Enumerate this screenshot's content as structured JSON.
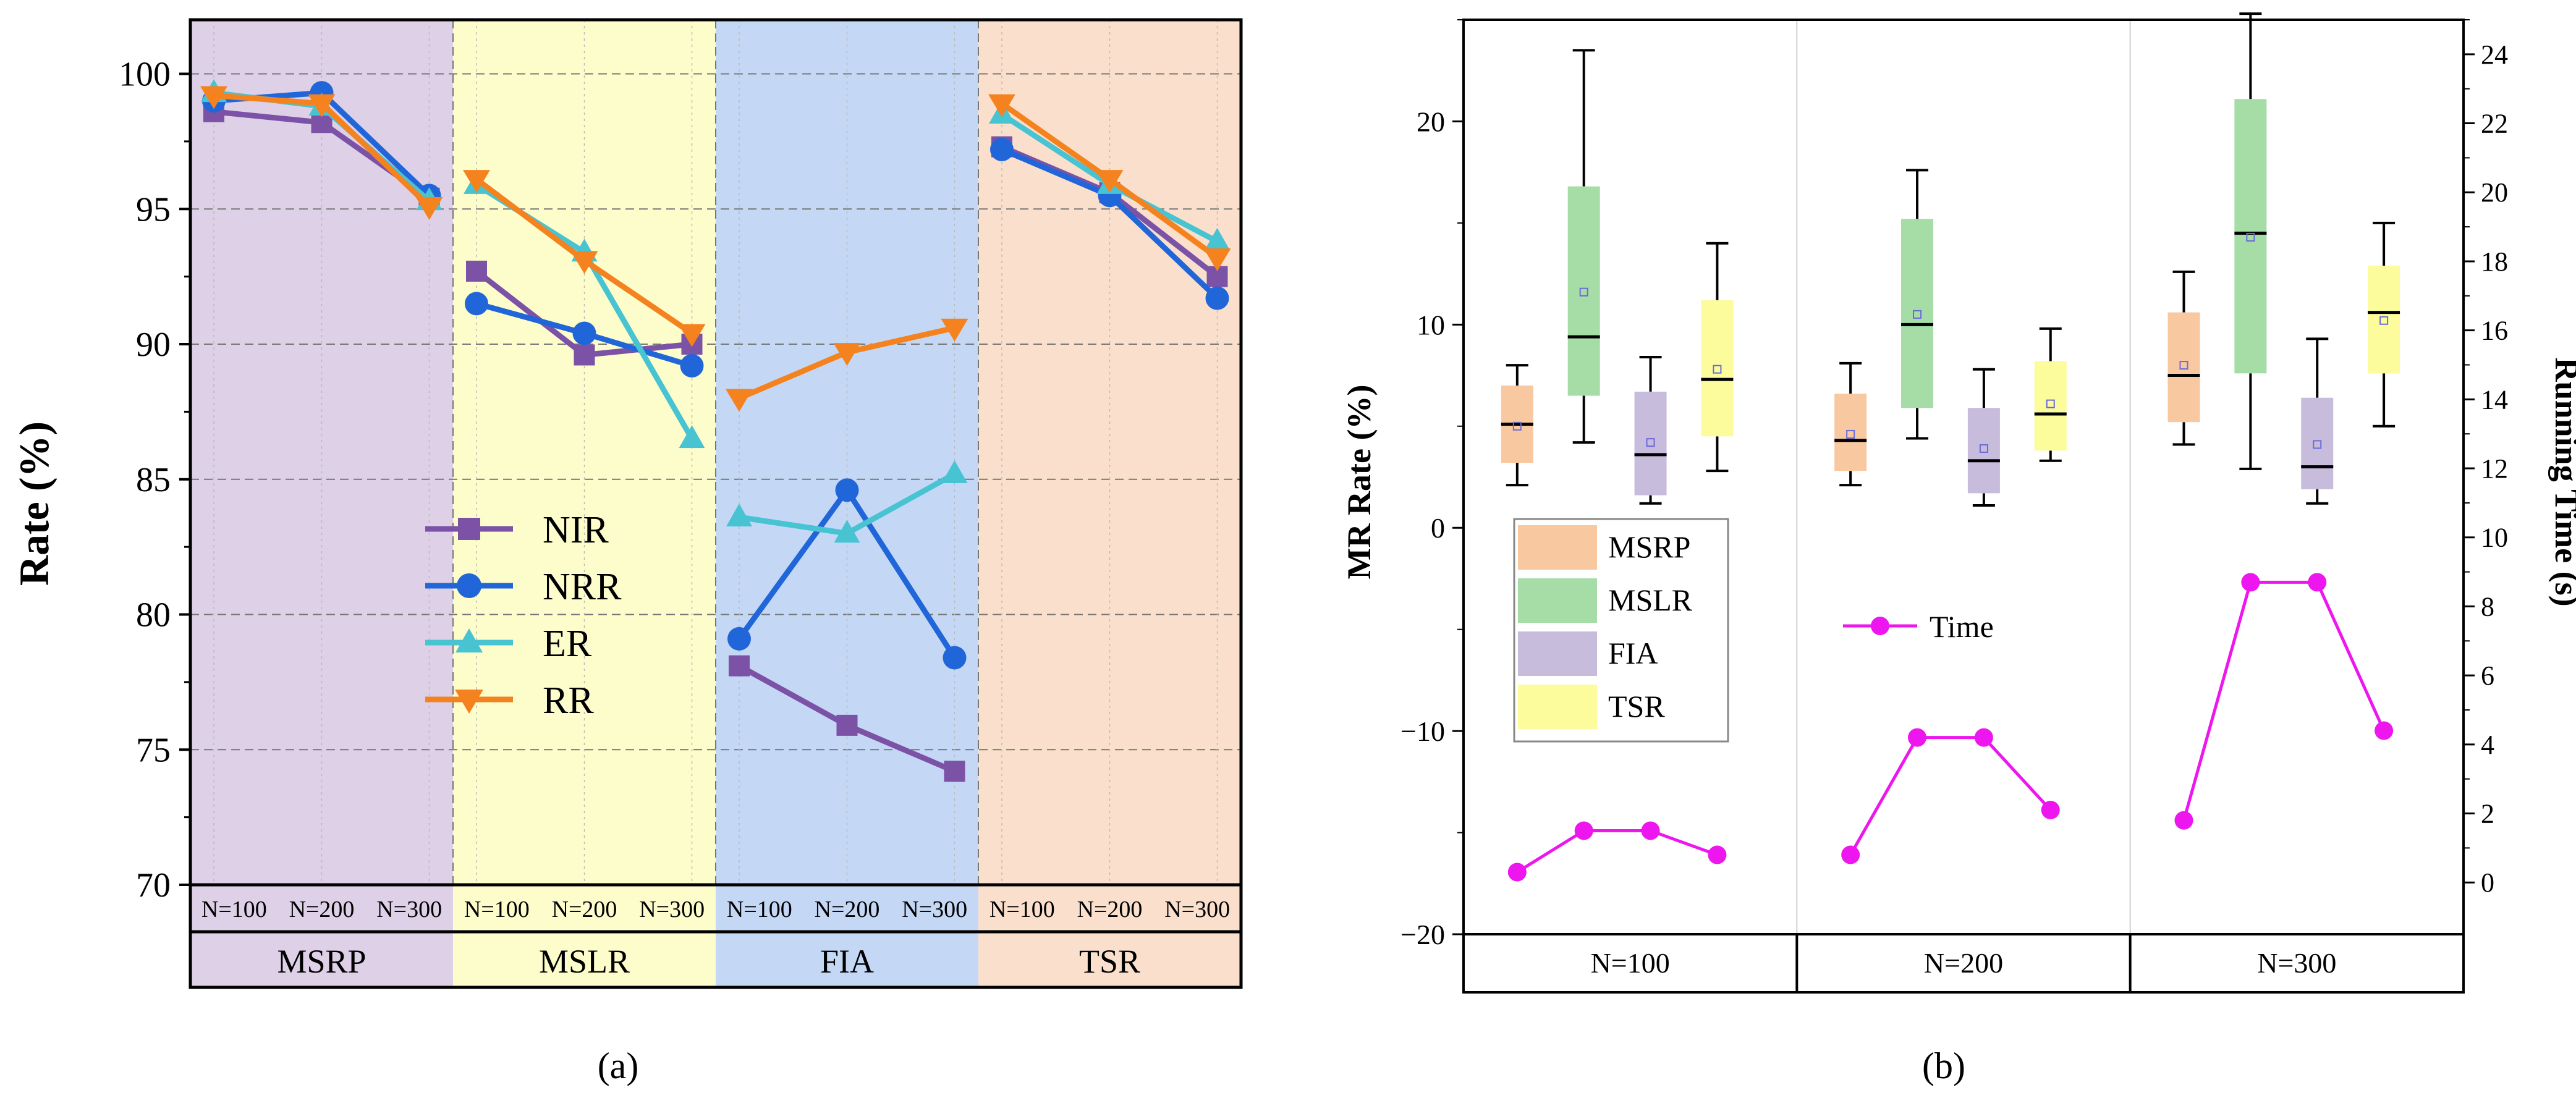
{
  "chart_data": [
    {
      "panel": "(a)",
      "type": "line",
      "ylabel": "Rate (%)",
      "ylim": [
        70,
        102
      ],
      "yticks": [
        70,
        75,
        80,
        85,
        90,
        95,
        100
      ],
      "grid": true,
      "legend_placement": "center",
      "groups": [
        {
          "name": "MSRP",
          "color": "#ddd0e7"
        },
        {
          "name": "MSLR",
          "color": "#fdfdcc"
        },
        {
          "name": "FIA",
          "color": "#c4d8f6"
        },
        {
          "name": "TSR",
          "color": "#fae0cc"
        }
      ],
      "categories": [
        "N=100",
        "N=200",
        "N=300"
      ],
      "series": [
        {
          "name": "NIR",
          "color": "#7b52a6",
          "marker": "square",
          "values": [
            [
              98.6,
              98.2,
              95.4
            ],
            [
              92.7,
              89.6,
              90.0
            ],
            [
              78.1,
              75.9,
              74.2
            ],
            [
              97.3,
              95.6,
              92.5
            ]
          ]
        },
        {
          "name": "NRR",
          "color": "#2166d9",
          "marker": "circle",
          "values": [
            [
              99.0,
              99.3,
              95.5
            ],
            [
              91.5,
              90.4,
              89.2
            ],
            [
              79.1,
              84.6,
              78.4
            ],
            [
              97.2,
              95.5,
              91.7
            ]
          ]
        },
        {
          "name": "ER",
          "color": "#48c3d2",
          "marker": "triangle-up",
          "values": [
            [
              99.3,
              98.8,
              95.3
            ],
            [
              95.9,
              93.4,
              86.5
            ],
            [
              83.6,
              83.0,
              85.2
            ],
            [
              98.5,
              95.9,
              93.8
            ]
          ]
        },
        {
          "name": "RR",
          "color": "#f4831f",
          "marker": "triangle-down",
          "values": [
            [
              99.2,
              98.9,
              95.1
            ],
            [
              96.1,
              93.1,
              90.4
            ],
            [
              88.0,
              89.7,
              90.6
            ],
            [
              98.9,
              96.1,
              93.2
            ]
          ]
        }
      ]
    },
    {
      "panel": "(b)",
      "type": "box",
      "ylabel": "MR Rate (%)",
      "ylabel_right": "Running Time (s)",
      "ylim": [
        -20,
        25
      ],
      "yticks": [
        -20,
        -10,
        0,
        10,
        20
      ],
      "ylim_right": [
        -1.5,
        25
      ],
      "yticks_right": [
        0,
        2,
        4,
        6,
        8,
        10,
        12,
        14,
        16,
        18,
        20,
        22,
        24
      ],
      "categories": [
        "N=100",
        "N=200",
        "N=300"
      ],
      "legend_placement": "left",
      "box_series": [
        {
          "name": "MSRP",
          "color": "#f8c8a0",
          "boxes": [
            {
              "whisker_low": 2.1,
              "q1": 3.2,
              "median": 5.1,
              "q3": 7.0,
              "whisker_high": 8.0,
              "mean": 5.0
            },
            {
              "whisker_low": 2.1,
              "q1": 2.8,
              "median": 4.3,
              "q3": 6.6,
              "whisker_high": 8.1,
              "mean": 4.6
            },
            {
              "whisker_low": 4.1,
              "q1": 5.2,
              "median": 7.5,
              "q3": 10.6,
              "whisker_high": 12.6,
              "mean": 8.0
            }
          ]
        },
        {
          "name": "MSLR",
          "color": "#a6dca6",
          "boxes": [
            {
              "whisker_low": 4.2,
              "q1": 6.5,
              "median": 9.4,
              "q3": 16.8,
              "whisker_high": 23.5,
              "mean": 11.6
            },
            {
              "whisker_low": 4.4,
              "q1": 5.9,
              "median": 10.0,
              "q3": 15.2,
              "whisker_high": 17.6,
              "mean": 10.5
            },
            {
              "whisker_low": 2.9,
              "q1": 7.6,
              "median": 14.5,
              "q3": 21.1,
              "whisker_high": 25.3,
              "mean": 14.3
            }
          ]
        },
        {
          "name": "FIA",
          "color": "#c8bcdc",
          "boxes": [
            {
              "whisker_low": 1.2,
              "q1": 1.6,
              "median": 3.6,
              "q3": 6.7,
              "whisker_high": 8.4,
              "mean": 4.2
            },
            {
              "whisker_low": 1.1,
              "q1": 1.7,
              "median": 3.3,
              "q3": 5.9,
              "whisker_high": 7.8,
              "mean": 3.9
            },
            {
              "whisker_low": 1.2,
              "q1": 1.9,
              "median": 3.0,
              "q3": 6.4,
              "whisker_high": 9.3,
              "mean": 4.1
            }
          ]
        },
        {
          "name": "TSR",
          "color": "#fcfc9c",
          "boxes": [
            {
              "whisker_low": 2.8,
              "q1": 4.5,
              "median": 7.3,
              "q3": 11.2,
              "whisker_high": 14.0,
              "mean": 7.8
            },
            {
              "whisker_low": 3.3,
              "q1": 3.8,
              "median": 5.6,
              "q3": 8.2,
              "whisker_high": 9.8,
              "mean": 6.1
            },
            {
              "whisker_low": 5.0,
              "q1": 7.6,
              "median": 10.6,
              "q3": 12.9,
              "whisker_high": 15.0,
              "mean": 10.2
            }
          ]
        }
      ],
      "time_series": {
        "name": "Time",
        "color": "#ee16ee",
        "segments": [
          [
            0.3,
            1.5,
            1.5,
            0.8
          ],
          [
            0.8,
            4.2,
            4.2,
            2.1
          ],
          [
            1.8,
            8.7,
            8.7,
            4.4
          ]
        ]
      }
    }
  ],
  "captions": {
    "a": "(a)",
    "b": "(b)"
  }
}
